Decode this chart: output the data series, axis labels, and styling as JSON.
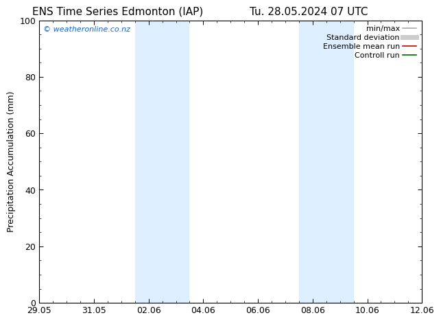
{
  "title_left": "ENS Time Series Edmonton (IAP)",
  "title_right": "Tu. 28.05.2024 07 UTC",
  "ylabel": "Precipitation Accumulation (mm)",
  "ylim": [
    0,
    100
  ],
  "yticks": [
    0,
    20,
    40,
    60,
    80,
    100
  ],
  "background_color": "#ffffff",
  "plot_background": "#ffffff",
  "watermark_text": "© weatheronline.co.nz",
  "watermark_color": "#1166cc",
  "x_tick_labels": [
    "29.05",
    "31.05",
    "02.06",
    "04.06",
    "06.06",
    "08.06",
    "10.06",
    "12.06"
  ],
  "x_tick_positions": [
    0,
    2,
    4,
    6,
    8,
    10,
    12,
    14
  ],
  "xlim": [
    0,
    14
  ],
  "shaded_regions": [
    {
      "x_start": 3.5,
      "x_end": 5.5,
      "color": "#ddeeff"
    },
    {
      "x_start": 9.5,
      "x_end": 11.5,
      "color": "#ddeeff"
    }
  ],
  "legend_entries": [
    {
      "label": "min/max",
      "color": "#aaaaaa",
      "lw": 1.2
    },
    {
      "label": "Standard deviation",
      "color": "#cccccc",
      "lw": 5
    },
    {
      "label": "Ensemble mean run",
      "color": "#cc0000",
      "lw": 1.2
    },
    {
      "label": "Controll run",
      "color": "#006600",
      "lw": 1.2
    }
  ],
  "title_fontsize": 11,
  "axis_label_fontsize": 9,
  "tick_fontsize": 9,
  "legend_fontsize": 8,
  "watermark_fontsize": 8
}
